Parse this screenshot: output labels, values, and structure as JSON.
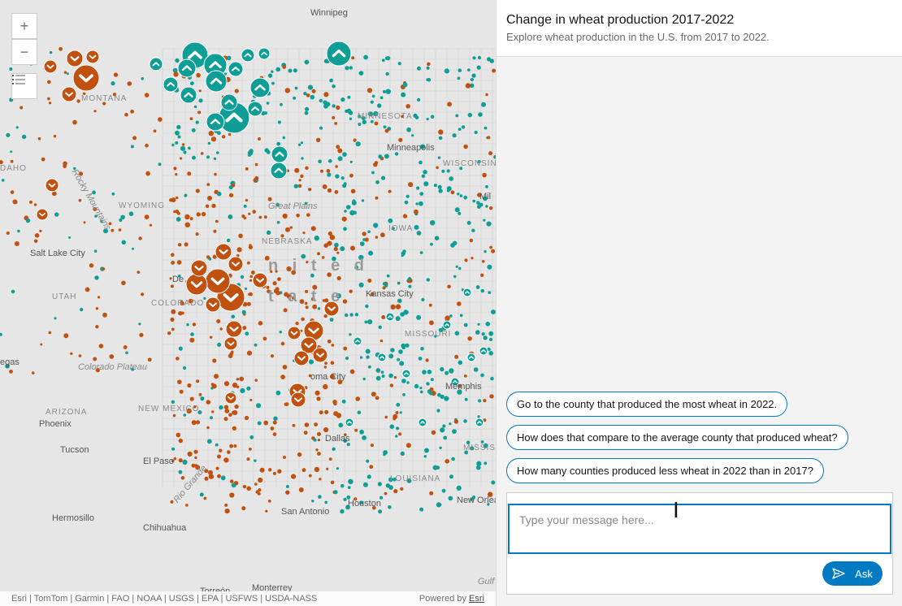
{
  "map": {
    "zoom_in": "+",
    "zoom_out": "−",
    "layers_icon": "list-icon",
    "labels": [
      {
        "name": "winnipeg",
        "text": "Winnipeg",
        "cls": "city"
      },
      {
        "name": "montana",
        "text": "MONTANA",
        "cls": "state"
      },
      {
        "name": "minnesota",
        "text": "MINNESOTA",
        "cls": "state"
      },
      {
        "name": "minneapolis",
        "text": "Minneapolis",
        "cls": "city"
      },
      {
        "name": "wisconsin",
        "text": "WISCONSIN",
        "cls": "state"
      },
      {
        "name": "idaho",
        "text": "DAHO",
        "cls": "state"
      },
      {
        "name": "rocky-mountains",
        "text": "Rocky Mountains",
        "cls": "italic"
      },
      {
        "name": "wyoming",
        "text": "WYOMING",
        "cls": "state"
      },
      {
        "name": "great-plains",
        "text": "Great Plains",
        "cls": "italic"
      },
      {
        "name": "iowa",
        "text": "IOWA",
        "cls": "state"
      },
      {
        "name": "salt-lake-city",
        "text": "Salt Lake City",
        "cls": "city"
      },
      {
        "name": "nebraska",
        "text": "NEBRASKA",
        "cls": "state"
      },
      {
        "name": "united",
        "text": "n i t e d",
        "cls": "big"
      },
      {
        "name": "states",
        "text": "t a t e",
        "cls": "big"
      },
      {
        "name": "utah",
        "text": "UTAH",
        "cls": "state"
      },
      {
        "name": "colorado",
        "text": "COLORADO",
        "cls": "state"
      },
      {
        "name": "kansas-city",
        "text": "Kansas City",
        "cls": "city"
      },
      {
        "name": "missouri",
        "text": "MISSOURI",
        "cls": "state"
      },
      {
        "name": "las-vegas",
        "text": "egas",
        "cls": "city"
      },
      {
        "name": "colorado-plateau",
        "text": "Colorado Plateau",
        "cls": "italic"
      },
      {
        "name": "oklahoma-city",
        "text": "oma City",
        "cls": "city"
      },
      {
        "name": "memphis",
        "text": "Memphis",
        "cls": "city"
      },
      {
        "name": "arizona",
        "text": "ARIZONA",
        "cls": "state"
      },
      {
        "name": "new-mexico",
        "text": "NEW MEXICO",
        "cls": "state"
      },
      {
        "name": "phoenix",
        "text": "Phoenix",
        "cls": "city"
      },
      {
        "name": "tucson",
        "text": "Tucson",
        "cls": "city"
      },
      {
        "name": "dallas",
        "text": "Dallas",
        "cls": "city"
      },
      {
        "name": "el-paso",
        "text": "El Paso",
        "cls": "city"
      },
      {
        "name": "mississippi",
        "text": "MISSISSIPPI",
        "cls": "state"
      },
      {
        "name": "louisiana",
        "text": "LOUISIANA",
        "cls": "state"
      },
      {
        "name": "houston",
        "text": "Houston",
        "cls": "city"
      },
      {
        "name": "new-orleans",
        "text": "New Orleans",
        "cls": "city"
      },
      {
        "name": "san-antonio",
        "text": "San Antonio",
        "cls": "city"
      },
      {
        "name": "hermosillo",
        "text": "Hermosillo",
        "cls": "city"
      },
      {
        "name": "chihuahua",
        "text": "Chihuahua",
        "cls": "city"
      },
      {
        "name": "rio-grande",
        "text": "Rio Grande",
        "cls": "italic"
      },
      {
        "name": "torreon",
        "text": "Torreón",
        "cls": "city"
      },
      {
        "name": "monterrey",
        "text": "Monterrey",
        "cls": "city"
      },
      {
        "name": "gulf",
        "text": "Gulf",
        "cls": "italic"
      },
      {
        "name": "denver",
        "text": "De",
        "cls": "city"
      },
      {
        "name": "milwaukee",
        "text": "Mil",
        "cls": "city"
      }
    ],
    "attribution": "Esri | TomTom | Garmin | FAO | NOAA | USGS | EPA | USFWS | USDA-NASS",
    "powered_by": "Powered by",
    "esri": "Esri",
    "colors": {
      "increase": "#0e9e96",
      "decrease": "#c0510f"
    }
  },
  "panel": {
    "title": "Change in wheat production 2017-2022",
    "subtitle": "Explore wheat production in the U.S. from 2017 to 2022.",
    "suggestions": [
      "Go to the county that produced the most wheat in 2022.",
      "How does that compare to the average county that produced wheat?",
      "How many counties produced less wheat in 2022 than in 2017?"
    ],
    "input_placeholder": "Type your message here...",
    "ask_label": "Ask",
    "send_icon": "send-icon"
  }
}
